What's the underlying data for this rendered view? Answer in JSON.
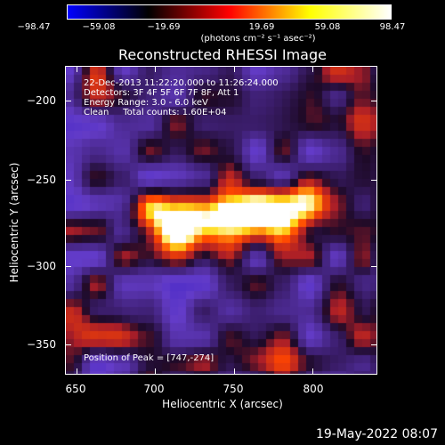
{
  "colorbar": {
    "ticks": [
      "−98.47",
      "−59.08",
      "−19.69",
      "19.69",
      "59.08",
      "98.47"
    ],
    "units": "(photons cm⁻² s⁻¹ asec⁻²)",
    "colormap": [
      "#0000ff",
      "#000000",
      "#ff0000",
      "#ffff00",
      "#ffffff"
    ]
  },
  "title": "Reconstructed RHESSI Image",
  "annotations": {
    "time": "22-Dec-2013 11:22:20.000 to 11:26:24.000",
    "detectors": "Detectors: 3F 4F 5F 6F 7F 8F, Att 1",
    "energy": "Energy Range: 3.0 - 6.0 keV",
    "clean": "Clean     Total counts: 1.60E+04",
    "peak": "Position of Peak = [747,-274]"
  },
  "axes": {
    "xlabel": "Heliocentric X (arcsec)",
    "ylabel": "Heliocentric Y (arcsec)",
    "xticks": [
      "650",
      "700",
      "750",
      "800"
    ],
    "yticks": [
      "−200",
      "−250",
      "−300",
      "−350"
    ]
  },
  "footer": {
    "timestamp": "19-May-2022 08:07"
  }
}
